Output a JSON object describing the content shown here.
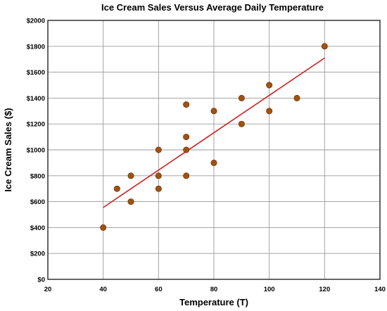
{
  "chart_data": {
    "type": "scatter",
    "title": "Ice Cream Sales Versus Average Daily Temperature",
    "xlabel": "Temperature (T)",
    "ylabel": "Ice Cream Sales ($)",
    "xlim": [
      20,
      140
    ],
    "ylim": [
      0,
      2000
    ],
    "x_ticks": [
      20,
      40,
      60,
      80,
      100,
      120,
      140
    ],
    "x_tick_labels": [
      "20",
      "40",
      "60",
      "80",
      "100",
      "120",
      "140"
    ],
    "y_ticks": [
      0,
      200,
      400,
      600,
      800,
      1000,
      1200,
      1400,
      1600,
      1800,
      2000
    ],
    "y_tick_labels": [
      "$0",
      "$200",
      "$400",
      "$600",
      "$800",
      "$1000",
      "$1200",
      "$1400",
      "$1600",
      "$1800",
      "$2000"
    ],
    "grid": true,
    "legend": "none",
    "point_color": "#a0520e",
    "trendline_color": "#cc1f1f",
    "points": [
      {
        "x": 40,
        "y": 400
      },
      {
        "x": 45,
        "y": 700
      },
      {
        "x": 50,
        "y": 800
      },
      {
        "x": 50,
        "y": 600
      },
      {
        "x": 60,
        "y": 1000
      },
      {
        "x": 60,
        "y": 800
      },
      {
        "x": 60,
        "y": 700
      },
      {
        "x": 70,
        "y": 1350
      },
      {
        "x": 70,
        "y": 1100
      },
      {
        "x": 70,
        "y": 1000
      },
      {
        "x": 70,
        "y": 800
      },
      {
        "x": 80,
        "y": 1300
      },
      {
        "x": 80,
        "y": 900
      },
      {
        "x": 90,
        "y": 1400
      },
      {
        "x": 90,
        "y": 1200
      },
      {
        "x": 100,
        "y": 1500
      },
      {
        "x": 100,
        "y": 1300
      },
      {
        "x": 110,
        "y": 1400
      },
      {
        "x": 120,
        "y": 1800
      }
    ],
    "trendline": {
      "x": [
        40,
        120
      ],
      "y": [
        555,
        1710
      ]
    }
  }
}
